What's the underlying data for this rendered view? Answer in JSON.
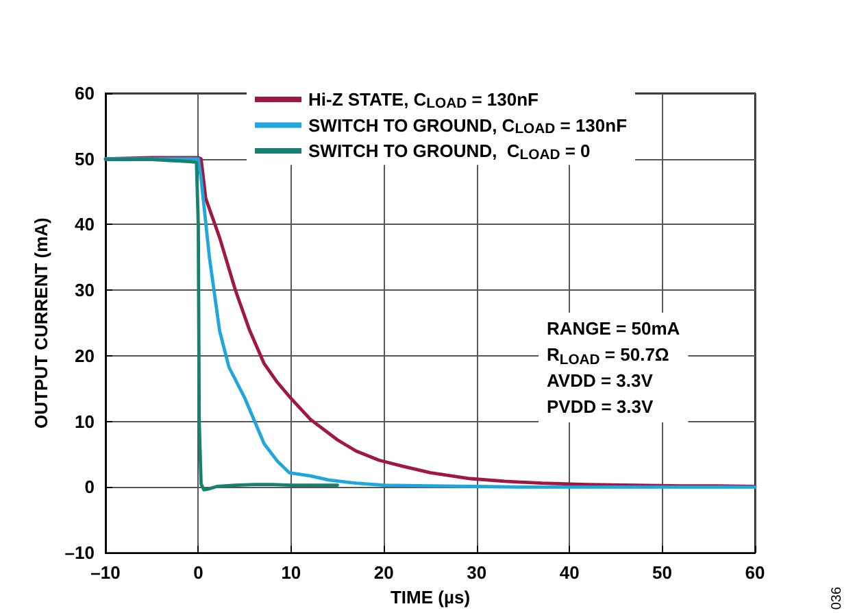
{
  "chart_data": {
    "type": "line",
    "xlabel": "TIME (µs)",
    "ylabel": "OUTPUT CURRENT (mA)",
    "xlim": [
      -10,
      60
    ],
    "xticks": [
      {
        "value": -10,
        "label": "–10"
      },
      0,
      10,
      20,
      30,
      40,
      50,
      60
    ],
    "ylim": [
      -10,
      60
    ],
    "yticks": [
      {
        "value": -10,
        "label": "–10"
      },
      0,
      10,
      20,
      30,
      40,
      50,
      60
    ],
    "grid": true,
    "legend": "top",
    "marker": "none",
    "line_style": "solid",
    "annotations": [
      "RANGE = 50mA\nR$_{LOAD}$ = 50.7Ω\nAVDD = 3.3V\nPVDD = 3.3V",
      "036"
    ],
    "series": [
      {
        "name": "Hi-Z STATE, C$_{LOAD}$ = 130nF",
        "color": "#a0173f",
        "x": [
          -10,
          -5,
          0,
          0.3,
          0.8,
          2.3,
          4,
          5.5,
          7.1,
          8.5,
          10,
          12.1,
          15,
          17,
          19.5,
          22,
          25,
          29.3,
          33,
          37,
          42,
          47,
          52,
          56,
          60
        ],
        "values": [
          50,
          50.2,
          50.2,
          50,
          44,
          38,
          30,
          24,
          18.8,
          16,
          13.5,
          10.3,
          7.2,
          5.5,
          4.1,
          3.2,
          2.2,
          1.3,
          0.9,
          0.6,
          0.4,
          0.3,
          0.2,
          0.2,
          0.1
        ]
      },
      {
        "name": "SWITCH TO GROUND, C$_{LOAD}$ = 130nF",
        "color": "#1fa6dc",
        "x": [
          -10,
          -5,
          0,
          0.3,
          1.2,
          2.3,
          3.3,
          5,
          7.1,
          8.5,
          9.8,
          12.1,
          14,
          17,
          20,
          25,
          30,
          35,
          40,
          45,
          50,
          55,
          60
        ],
        "values": [
          50,
          50,
          50,
          47,
          35,
          23.8,
          18.3,
          13.6,
          6.6,
          4,
          2.2,
          1.7,
          1.1,
          0.6,
          0.3,
          0.2,
          0.1,
          0,
          0,
          0,
          0,
          0,
          0
        ]
      },
      {
        "name": "SWITCH TO GROUND,  C$_{LOAD}$ = 0",
        "color": "#17806f",
        "x": [
          -10,
          -5,
          -1,
          -0.2,
          0,
          0.1,
          0.3,
          0.6,
          1,
          2,
          4,
          6,
          8,
          10,
          12,
          15
        ],
        "values": [
          49.9,
          49.9,
          49.6,
          49.5,
          40,
          10,
          0.5,
          -0.4,
          -0.3,
          0.1,
          0.3,
          0.4,
          0.4,
          0.3,
          0.3,
          0.3
        ]
      }
    ]
  }
}
